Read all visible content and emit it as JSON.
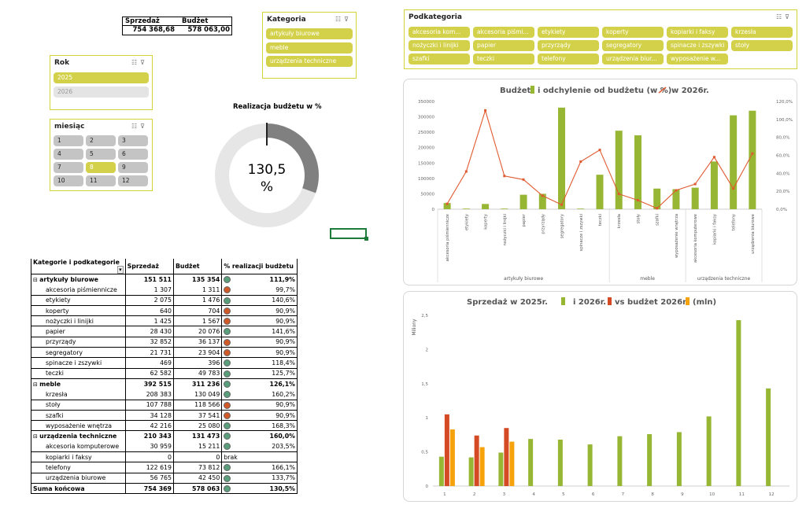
{
  "kpi": {
    "sales_label": "Sprzedaż",
    "budget_label": "Budżet",
    "sales_value": "754 368,68",
    "budget_value": "578 063,00"
  },
  "slicer_year": {
    "title": "Rok",
    "items": [
      {
        "label": "2025",
        "state": "on"
      },
      {
        "label": "2026",
        "state": "off"
      }
    ]
  },
  "slicer_month": {
    "title": "miesiąc",
    "items": [
      "1",
      "2",
      "3",
      "4",
      "5",
      "6",
      "7",
      "8",
      "9",
      "10",
      "11",
      "12"
    ],
    "selected": "8"
  },
  "slicer_category": {
    "title": "Kategoria",
    "items": [
      "artykuły biurowe",
      "meble",
      "urządzenia techniczne"
    ]
  },
  "slicer_subcategory": {
    "title": "Podkategoria",
    "items": [
      "akcesoria kom...",
      "akcesoria piśmi...",
      "etykiety",
      "koperty",
      "kopiarki i faksy",
      "krzesła",
      "nożyczki i linijki",
      "papier",
      "przyrządy",
      "segregatory",
      "spinacze i zszywki",
      "stoły",
      "szafki",
      "teczki",
      "telefony",
      "urządzenia biur...",
      "wyposażenie w..."
    ]
  },
  "donut": {
    "title": "Realizacja budżetu w %",
    "value": "130,5",
    "unit": "%",
    "fill_fraction": 0.305
  },
  "pivot": {
    "headers": [
      "Kategorie i podkategorie",
      "Sprzedaż",
      "Budżet",
      "% realizacji budżetu"
    ],
    "rows": [
      {
        "type": "cat",
        "name": "artykuły biurowe",
        "sales": "151 511",
        "budget": "135 354",
        "status": "green",
        "pct": "111,9%"
      },
      {
        "type": "sub",
        "name": "akcesoria piśmiennicze",
        "sales": "1 307",
        "budget": "1 311",
        "status": "red",
        "pct": "99,7%"
      },
      {
        "type": "sub",
        "name": "etykiety",
        "sales": "2 075",
        "budget": "1 476",
        "status": "green",
        "pct": "140,6%"
      },
      {
        "type": "sub",
        "name": "koperty",
        "sales": "640",
        "budget": "704",
        "status": "red",
        "pct": "90,9%"
      },
      {
        "type": "sub",
        "name": "nożyczki i linijki",
        "sales": "1 425",
        "budget": "1 567",
        "status": "red",
        "pct": "90,9%"
      },
      {
        "type": "sub",
        "name": "papier",
        "sales": "28 430",
        "budget": "20 076",
        "status": "green",
        "pct": "141,6%"
      },
      {
        "type": "sub",
        "name": "przyrządy",
        "sales": "32 852",
        "budget": "36 137",
        "status": "red",
        "pct": "90,9%"
      },
      {
        "type": "sub",
        "name": "segregatory",
        "sales": "21 731",
        "budget": "23 904",
        "status": "red",
        "pct": "90,9%"
      },
      {
        "type": "sub",
        "name": "spinacze i zszywki",
        "sales": "469",
        "budget": "396",
        "status": "green",
        "pct": "118,4%"
      },
      {
        "type": "sub",
        "name": "teczki",
        "sales": "62 582",
        "budget": "49 783",
        "status": "green",
        "pct": "125,7%"
      },
      {
        "type": "cat",
        "name": "meble",
        "sales": "392 515",
        "budget": "311 236",
        "status": "green",
        "pct": "126,1%"
      },
      {
        "type": "sub",
        "name": "krzesła",
        "sales": "208 383",
        "budget": "130 049",
        "status": "green",
        "pct": "160,2%"
      },
      {
        "type": "sub",
        "name": "stoły",
        "sales": "107 788",
        "budget": "118 566",
        "status": "red",
        "pct": "90,9%"
      },
      {
        "type": "sub",
        "name": "szafki",
        "sales": "34 128",
        "budget": "37 541",
        "status": "red",
        "pct": "90,9%"
      },
      {
        "type": "sub",
        "name": "wyposażenie wnętrza",
        "sales": "42 216",
        "budget": "25 080",
        "status": "green",
        "pct": "168,3%"
      },
      {
        "type": "cat",
        "name": "urządzenia techniczne",
        "sales": "210 343",
        "budget": "131 473",
        "status": "green",
        "pct": "160,0%"
      },
      {
        "type": "sub",
        "name": "akcesoria komputerowe",
        "sales": "30 959",
        "budget": "15 211",
        "status": "green",
        "pct": "203,5%"
      },
      {
        "type": "sub",
        "name": "kopiarki i faksy",
        "sales": "0",
        "budget": "0",
        "status": "none",
        "pct": "brak"
      },
      {
        "type": "sub",
        "name": "telefony",
        "sales": "122 619",
        "budget": "73 812",
        "status": "green",
        "pct": "166,1%"
      },
      {
        "type": "sub",
        "name": "urządzenia biurowe",
        "sales": "56 765",
        "budget": "42 450",
        "status": "green",
        "pct": "133,7%"
      },
      {
        "type": "total",
        "name": "Suma końcowa",
        "sales": "754 369",
        "budget": "578 063",
        "status": "green",
        "pct": "130,5%"
      }
    ]
  },
  "colors": {
    "accent_yellow": "#d3d14a",
    "bar_green": "#97b634",
    "line_orange": "#e05a30",
    "bar_red": "#d34a25",
    "bar_orange": "#f5a20c",
    "donut_dark": "#808080",
    "donut_light": "#e6e6e6"
  },
  "chart_data": [
    {
      "type": "bar",
      "title_parts": [
        "Budżet",
        "i odchylenie od budżetu (w %)",
        "w 2026r."
      ],
      "categories": [
        "akcesoria piśmiennicze",
        "etykiety",
        "koperty",
        "nożyczki i linijki",
        "papier",
        "przyrządy",
        "segregatory",
        "spinacze i zszywki",
        "teczki",
        "krzesła",
        "stoły",
        "szafki",
        "wyposażenie wnętrza",
        "akcesoria komputerowe",
        "kopiarki i faksy",
        "telefony",
        "urządzenia biurowe"
      ],
      "groups": [
        {
          "name": "artykuły biurowe",
          "count": 9
        },
        {
          "name": "meble",
          "count": 4
        },
        {
          "name": "urządzenia techniczne",
          "count": 4
        }
      ],
      "series": [
        {
          "name": "Budżet",
          "kind": "bar",
          "axis": "left",
          "values": [
            20000,
            2000,
            17000,
            2000,
            47000,
            50000,
            330000,
            2000,
            112000,
            255000,
            240000,
            67000,
            65000,
            70000,
            155000,
            305000,
            320000
          ]
        },
        {
          "name": "w 2026r.",
          "kind": "line",
          "axis": "right",
          "values": [
            6,
            42,
            110,
            37,
            33,
            15,
            5,
            53,
            66,
            17,
            10,
            1,
            21,
            28,
            58,
            23,
            62
          ]
        }
      ],
      "yleft_ticks": [
        "0",
        "50000",
        "100000",
        "150000",
        "200000",
        "250000",
        "300000",
        "350000"
      ],
      "yleft_lim": [
        0,
        350000
      ],
      "yright_ticks": [
        "0,0%",
        "20,0%",
        "40,0%",
        "60,0%",
        "80,0%",
        "100,0%",
        "120,0%"
      ],
      "yright_lim": [
        0,
        120
      ]
    },
    {
      "type": "bar",
      "title_parts": [
        "Sprzedaż w 2025r.",
        "i 2026r.",
        "vs budżet 2026r.",
        "(mln)"
      ],
      "ylabel": "Miliony",
      "categories": [
        "1",
        "2",
        "3",
        "4",
        "5",
        "6",
        "7",
        "8",
        "9",
        "10",
        "11",
        "12"
      ],
      "series": [
        {
          "name": "2025",
          "values": [
            0.43,
            0.42,
            0.49,
            0.69,
            0.68,
            0.61,
            0.73,
            0.76,
            0.79,
            1.02,
            2.43,
            1.43
          ]
        },
        {
          "name": "2026",
          "values": [
            1.05,
            0.74,
            0.85,
            null,
            null,
            null,
            null,
            null,
            null,
            null,
            null,
            null
          ]
        },
        {
          "name": "budżet 2026",
          "values": [
            0.83,
            0.57,
            0.65,
            null,
            null,
            null,
            null,
            null,
            null,
            null,
            null,
            null
          ]
        }
      ],
      "y_ticks": [
        "0",
        "0,5",
        "1",
        "1,5",
        "2",
        "2,5"
      ],
      "ylim": [
        0,
        2.5
      ]
    }
  ]
}
